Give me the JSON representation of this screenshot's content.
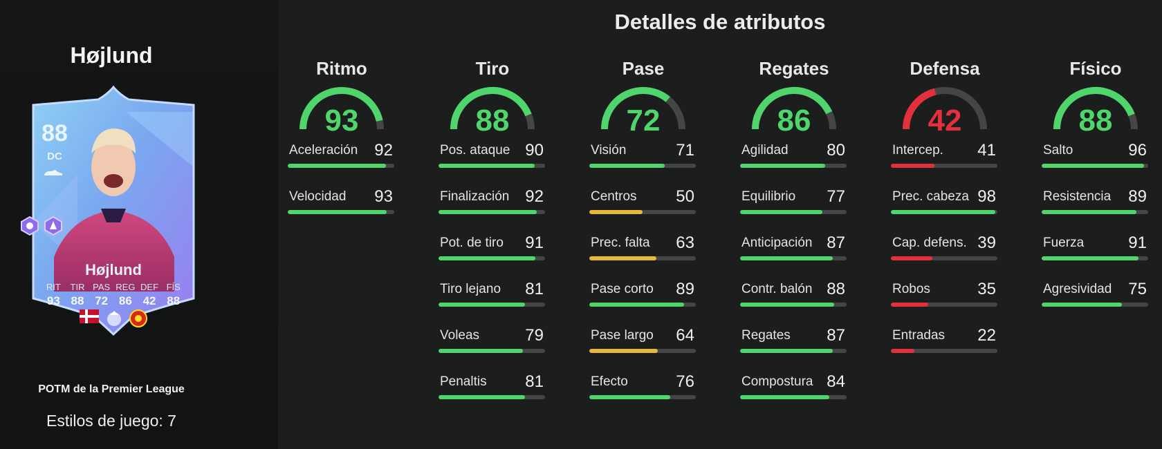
{
  "player": {
    "name": "Højlund",
    "rating": "88",
    "position": "DC",
    "card_name": "Højlund",
    "card_stats": [
      {
        "label": "RIT",
        "value": "93"
      },
      {
        "label": "TIR",
        "value": "88"
      },
      {
        "label": "PAS",
        "value": "72"
      },
      {
        "label": "REG",
        "value": "86"
      },
      {
        "label": "DEF",
        "value": "42"
      },
      {
        "label": "FÍS",
        "value": "88"
      }
    ],
    "promo": "POTM de la Premier League",
    "playstyles": "Estilos de juego: 7"
  },
  "title": "Detalles de atributos",
  "colors": {
    "green": "#4fd56c",
    "yellow": "#e6b83c",
    "red": "#e4303c",
    "track": "#444646"
  },
  "categories": [
    {
      "name": "Ritmo",
      "value": 93,
      "value_text": "93",
      "attributes": [
        {
          "label": "Aceleración",
          "value": 92,
          "value_text": "92"
        },
        {
          "label": "Velocidad",
          "value": 93,
          "value_text": "93"
        }
      ]
    },
    {
      "name": "Tiro",
      "value": 88,
      "value_text": "88",
      "attributes": [
        {
          "label": "Pos. ataque",
          "value": 90,
          "value_text": "90"
        },
        {
          "label": "Finalización",
          "value": 92,
          "value_text": "92"
        },
        {
          "label": "Pot. de tiro",
          "value": 91,
          "value_text": "91"
        },
        {
          "label": "Tiro lejano",
          "value": 81,
          "value_text": "81"
        },
        {
          "label": "Voleas",
          "value": 79,
          "value_text": "79"
        },
        {
          "label": "Penaltis",
          "value": 81,
          "value_text": "81"
        }
      ]
    },
    {
      "name": "Pase",
      "value": 72,
      "value_text": "72",
      "attributes": [
        {
          "label": "Visión",
          "value": 71,
          "value_text": "71"
        },
        {
          "label": "Centros",
          "value": 50,
          "value_text": "50"
        },
        {
          "label": "Prec. falta",
          "value": 63,
          "value_text": "63"
        },
        {
          "label": "Pase corto",
          "value": 89,
          "value_text": "89"
        },
        {
          "label": "Pase largo",
          "value": 64,
          "value_text": "64"
        },
        {
          "label": "Efecto",
          "value": 76,
          "value_text": "76"
        }
      ]
    },
    {
      "name": "Regates",
      "value": 86,
      "value_text": "86",
      "attributes": [
        {
          "label": "Agilidad",
          "value": 80,
          "value_text": "80"
        },
        {
          "label": "Equilibrio",
          "value": 77,
          "value_text": "77"
        },
        {
          "label": "Anticipación",
          "value": 87,
          "value_text": "87"
        },
        {
          "label": "Contr. balón",
          "value": 88,
          "value_text": "88"
        },
        {
          "label": "Regates",
          "value": 87,
          "value_text": "87"
        },
        {
          "label": "Compostura",
          "value": 84,
          "value_text": "84"
        }
      ]
    },
    {
      "name": "Defensa",
      "value": 42,
      "value_text": "42",
      "attributes": [
        {
          "label": "Intercep.",
          "value": 41,
          "value_text": "41"
        },
        {
          "label": "Prec. cabeza",
          "value": 98,
          "value_text": "98"
        },
        {
          "label": "Cap. defens.",
          "value": 39,
          "value_text": "39"
        },
        {
          "label": "Robos",
          "value": 35,
          "value_text": "35"
        },
        {
          "label": "Entradas",
          "value": 22,
          "value_text": "22"
        }
      ]
    },
    {
      "name": "Físico",
      "value": 88,
      "value_text": "88",
      "attributes": [
        {
          "label": "Salto",
          "value": 96,
          "value_text": "96"
        },
        {
          "label": "Resistencia",
          "value": 89,
          "value_text": "89"
        },
        {
          "label": "Fuerza",
          "value": 91,
          "value_text": "91"
        },
        {
          "label": "Agresividad",
          "value": 75,
          "value_text": "75"
        }
      ]
    }
  ]
}
